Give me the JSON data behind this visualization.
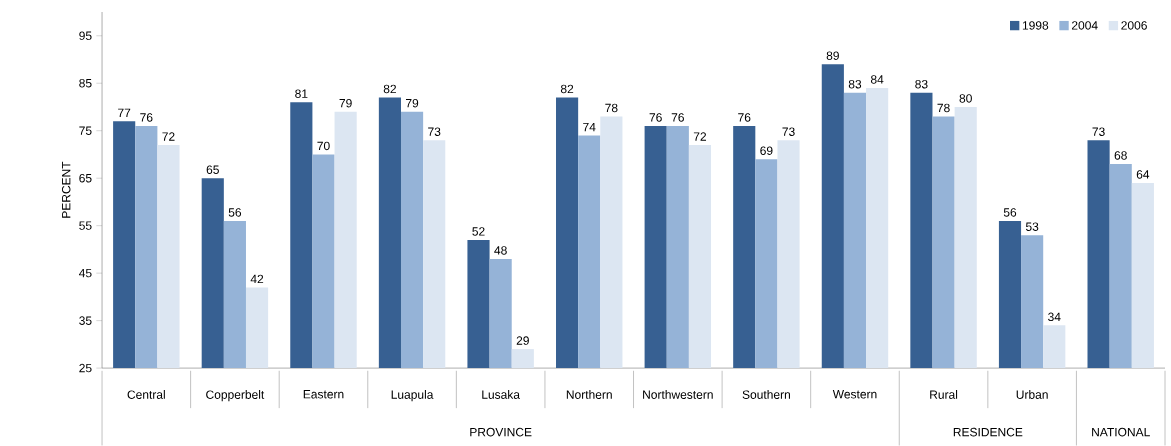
{
  "chart_data": {
    "type": "bar",
    "ylabel": "PERCENT",
    "categories": [
      "Central",
      "Copperbelt",
      "Eastern",
      "Luapula",
      "Lusaka",
      "Northern",
      "Northwestern",
      "Southern",
      "Western",
      "Rural",
      "Urban",
      null
    ],
    "series": [
      {
        "name": "1998",
        "color": "#376092",
        "values": [
          77,
          65,
          81,
          82,
          52,
          82,
          76,
          76,
          89,
          83,
          56,
          73
        ]
      },
      {
        "name": "2004",
        "color": "#95b3d7",
        "values": [
          76,
          56,
          70,
          79,
          48,
          74,
          76,
          69,
          83,
          78,
          53,
          68
        ]
      },
      {
        "name": "2006",
        "color": "#dce6f2",
        "values": [
          72,
          42,
          79,
          73,
          29,
          78,
          72,
          73,
          84,
          80,
          34,
          64
        ]
      }
    ],
    "ylim": [
      25,
      100
    ],
    "yticks": [
      25,
      35,
      45,
      55,
      65,
      75,
      85,
      95
    ],
    "data_labels": true,
    "legend": "top right",
    "grid": false,
    "annotations": [
      "PROVINCE",
      "RESIDENCE",
      "NATIONAL"
    ]
  }
}
